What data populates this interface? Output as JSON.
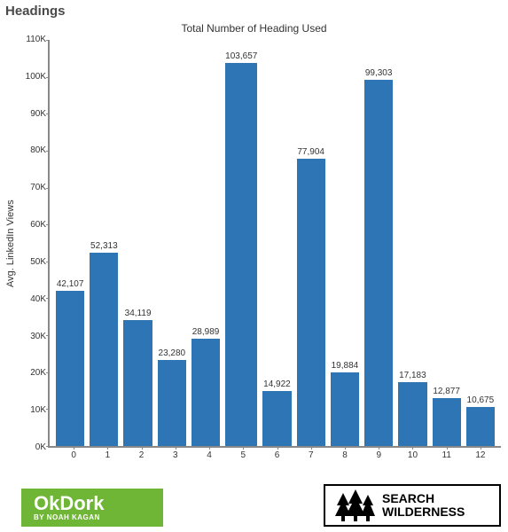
{
  "page_title": "Headings",
  "chart": {
    "type": "bar",
    "title": "Total Number of Heading Used",
    "y_axis_label": "Avg. LinkedIn Views",
    "categories": [
      "0",
      "1",
      "2",
      "3",
      "4",
      "5",
      "6",
      "7",
      "8",
      "9",
      "10",
      "11",
      "12"
    ],
    "values": [
      42107,
      52313,
      34119,
      23280,
      28989,
      103657,
      14922,
      77904,
      19884,
      99303,
      17183,
      12877,
      10675
    ],
    "value_labels": [
      "42,107",
      "52,313",
      "34,119",
      "23,280",
      "28,989",
      "103,657",
      "14,922",
      "77,904",
      "19,884",
      "99,303",
      "17,183",
      "12,877",
      "10,675"
    ],
    "y_ticks": [
      "110K",
      "100K",
      "90K",
      "80K",
      "70K",
      "60K",
      "50K",
      "40K",
      "30K",
      "20K",
      "10K",
      "0K"
    ],
    "ylim": [
      0,
      110000
    ],
    "bar_color": "#2e75b6",
    "axis_color": "#888888",
    "background_color": "#ffffff",
    "value_fontsize": 10,
    "tick_fontsize": 10,
    "title_fontsize": 12
  },
  "logos": {
    "okdork": {
      "title": "OkDork",
      "subtitle": "BY NOAH KAGAN",
      "bg": "#6fb536",
      "fg": "#ffffff"
    },
    "search_wilderness": {
      "line1": "SEARCH",
      "line2": "WILDERNESS",
      "border": "#000000"
    }
  }
}
